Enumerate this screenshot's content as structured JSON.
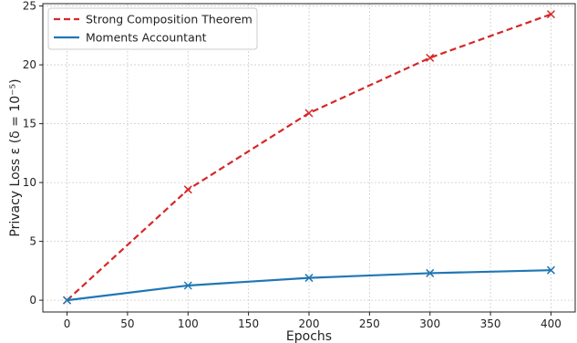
{
  "chart_data": {
    "type": "line",
    "xlabel": "Epochs",
    "ylabel": "Privacy Loss ε (δ = 10⁻⁵)",
    "x": [
      0,
      100,
      200,
      300,
      400
    ],
    "xlim": [
      -20,
      420
    ],
    "ylim": [
      -1,
      25.2
    ],
    "xticks": [
      0,
      50,
      100,
      150,
      200,
      250,
      300,
      350,
      400
    ],
    "yticks": [
      0,
      5,
      10,
      15,
      20,
      25
    ],
    "grid": true,
    "legend_position": "top-left",
    "series": [
      {
        "name": "Strong Composition Theorem",
        "values": [
          0.0,
          9.4,
          15.9,
          20.6,
          24.3
        ],
        "color": "#d62728",
        "line_style": "dashed",
        "marker": "x"
      },
      {
        "name": "Moments Accountant",
        "values": [
          0.0,
          1.25,
          1.9,
          2.3,
          2.55
        ],
        "color": "#1f77b4",
        "line_style": "solid",
        "marker": "x"
      }
    ]
  }
}
